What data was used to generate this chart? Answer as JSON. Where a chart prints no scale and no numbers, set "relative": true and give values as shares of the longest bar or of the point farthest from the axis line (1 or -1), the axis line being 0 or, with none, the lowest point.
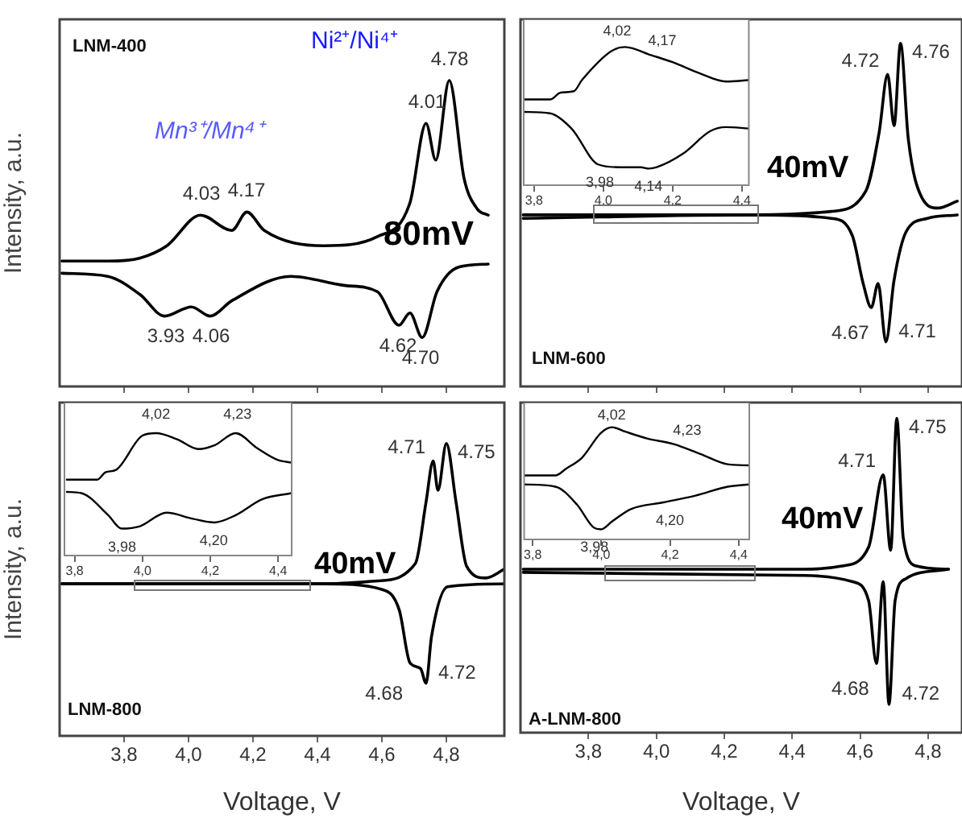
{
  "chart_data": [
    {
      "type": "line",
      "relative": true,
      "ylabel": "Intensity, a.u.",
      "tick_labels": false,
      "xlim": [
        3.6,
        4.98
      ],
      "xticks": [
        {
          "value": 3.8,
          "label": null
        },
        {
          "value": 4.0,
          "label": null
        },
        {
          "value": 4.2,
          "label": null
        },
        {
          "value": 4.4,
          "label": null
        },
        {
          "value": 4.6,
          "label": null
        },
        {
          "value": 4.8,
          "label": null
        }
      ],
      "series": [
        {
          "color": "#000000",
          "x": [
            3.607,
            3.749,
            3.85,
            3.933,
            4.037,
            4.134,
            4.181,
            4.235,
            4.419,
            4.586,
            4.687,
            4.737,
            4.767,
            4.809,
            4.855,
            4.896,
            4.93
          ],
          "values": [
            0.41,
            0.41,
            0.42,
            0.46,
            0.56,
            0.51,
            0.57,
            0.51,
            0.46,
            0.49,
            0.6,
            0.86,
            0.74,
            1,
            0.68,
            0.58,
            0.56
          ]
        },
        {
          "color": "#000000",
          "x": [
            3.607,
            3.749,
            3.85,
            3.925,
            4.009,
            4.067,
            4.134,
            4.318,
            4.486,
            4.586,
            4.653,
            4.687,
            4.725,
            4.771,
            4.838,
            4.93
          ],
          "values": [
            0.37,
            0.36,
            0.3,
            0.23,
            0.26,
            0.23,
            0.28,
            0.36,
            0.33,
            0.31,
            0.2,
            0.24,
            0.16,
            0.31,
            0.39,
            0.4
          ]
        }
      ],
      "annotations": [
        "LNM-400",
        "Ni²⁺/Ni⁴⁺",
        "Mn³⁺/Mn⁴⁺",
        "80mV",
        {
          "text": "4.03",
          "x": 4.04,
          "y": 0.56
        },
        {
          "text": "4.17",
          "x": 4.18,
          "y": 0.57
        },
        {
          "text": "4.01",
          "x": 4.74,
          "y": 0.86
        },
        {
          "text": "4.78",
          "x": 4.81,
          "y": 1
        },
        {
          "text": "3.93",
          "x": 3.93,
          "y": 0.23
        },
        {
          "text": "4.06",
          "x": 4.07,
          "y": 0.23
        },
        {
          "text": "4.62",
          "x": 4.65,
          "y": 0.2
        },
        {
          "text": "4.70",
          "x": 4.72,
          "y": 0.16
        }
      ]
    },
    {
      "type": "line",
      "relative": true,
      "tick_labels": false,
      "xlim": [
        3.6,
        4.9
      ],
      "xticks": [
        {
          "value": 3.8,
          "label": null
        },
        {
          "value": 4.0,
          "label": null
        },
        {
          "value": 4.2,
          "label": null
        },
        {
          "value": 4.4,
          "label": null
        },
        {
          "value": 4.6,
          "label": null
        },
        {
          "value": 4.8,
          "label": null
        }
      ],
      "series": [
        {
          "color": "#000000",
          "x": [
            3.608,
            4.296,
            4.515,
            4.617,
            4.656,
            4.681,
            4.7,
            4.719,
            4.742,
            4.782,
            4.829,
            4.886
          ],
          "values": [
            0.5,
            0.5,
            0.51,
            0.57,
            0.74,
            0.91,
            0.76,
            1,
            0.72,
            0.55,
            0.52,
            0.54
          ]
        },
        {
          "color": "#000000",
          "x": [
            3.608,
            4.296,
            4.515,
            4.577,
            4.609,
            4.633,
            4.653,
            4.676,
            4.7,
            4.735,
            4.798,
            4.886
          ],
          "values": [
            0.49,
            0.5,
            0.49,
            0.44,
            0.3,
            0.23,
            0.3,
            0.13,
            0.31,
            0.45,
            0.49,
            0.5
          ]
        }
      ],
      "annotations": [
        "40mV",
        "LNM-600",
        {
          "text": "4.72",
          "x": 4.68,
          "y": 0.91
        },
        {
          "text": "4.76",
          "x": 4.72,
          "y": 1
        },
        {
          "text": "4.67",
          "x": 4.65,
          "y": 0.23
        },
        {
          "text": "4.71",
          "x": 4.68,
          "y": 0.13
        }
      ]
    },
    {
      "type": "line",
      "relative": true,
      "tick_labels": "x",
      "xlim": [
        3.77,
        4.42
      ],
      "xticks": [
        {
          "value": 3.8,
          "label": "3,8"
        },
        {
          "value": 4.0,
          "label": "4,0"
        },
        {
          "value": 4.2,
          "label": "4,2"
        },
        {
          "value": 4.4,
          "label": "4,4"
        }
      ],
      "series": [
        {
          "color": "#000000",
          "x": [
            3.772,
            3.846,
            3.877,
            3.915,
            3.938,
            4.023,
            4.062,
            4.139,
            4.2,
            4.277,
            4.354,
            4.42
          ],
          "values": [
            0.62,
            0.62,
            0.67,
            0.68,
            0.76,
            0.97,
            1,
            0.94,
            0.89,
            0.81,
            0.75,
            0.76
          ]
        },
        {
          "color": "#000000",
          "x": [
            3.772,
            3.846,
            3.908,
            3.985,
            4.046,
            4.108,
            4.131,
            4.154,
            4.231,
            4.308,
            4.354,
            4.42
          ],
          "values": [
            0.53,
            0.52,
            0.41,
            0.15,
            0.13,
            0.13,
            0.12,
            0.13,
            0.23,
            0.39,
            0.42,
            0.41
          ]
        }
      ],
      "annotations": [
        {
          "text": "4,02",
          "x": 4.04,
          "y": 0.98
        },
        {
          "text": "4,17",
          "x": 4.17,
          "y": 0.91
        },
        {
          "text": "3,98",
          "x": 3.99,
          "y": 0.15
        },
        {
          "text": "4,14",
          "x": 4.13,
          "y": 0.12
        }
      ]
    },
    {
      "type": "line",
      "relative": true,
      "xlabel": "Voltage, V",
      "ylabel": "Intensity, a.u.",
      "tick_labels": "x",
      "xlim": [
        3.6,
        4.98
      ],
      "xticks": [
        {
          "value": 3.8,
          "label": "3,8"
        },
        {
          "value": 4.0,
          "label": "4,0"
        },
        {
          "value": 4.2,
          "label": "4,2"
        },
        {
          "value": 4.4,
          "label": "4,4"
        },
        {
          "value": 4.6,
          "label": "4,6"
        },
        {
          "value": 4.8,
          "label": "4,8"
        }
      ],
      "series": [
        {
          "color": "#000000",
          "x": [
            3.607,
            4.419,
            4.586,
            4.704,
            4.737,
            4.759,
            4.774,
            4.8,
            4.83,
            4.863,
            4.922,
            4.98
          ],
          "values": [
            0.52,
            0.52,
            0.53,
            0.59,
            0.8,
            0.94,
            0.84,
            1,
            0.8,
            0.58,
            0.54,
            0.57
          ]
        },
        {
          "color": "#000000",
          "x": [
            3.607,
            4.419,
            4.603,
            4.654,
            4.687,
            4.72,
            4.737,
            4.754,
            4.804,
            4.98
          ],
          "values": [
            0.52,
            0.52,
            0.5,
            0.43,
            0.25,
            0.23,
            0.18,
            0.34,
            0.51,
            0.52
          ]
        }
      ],
      "annotations": [
        "40mV",
        "LNM-800",
        {
          "text": "4.71",
          "x": 4.76,
          "y": 0.94
        },
        {
          "text": "4.75",
          "x": 4.8,
          "y": 1
        },
        {
          "text": "4.68",
          "x": 4.69,
          "y": 0.23
        },
        {
          "text": "4.72",
          "x": 4.74,
          "y": 0.18
        }
      ]
    },
    {
      "type": "line",
      "relative": true,
      "tick_labels": "x",
      "xlim": [
        3.77,
        4.44
      ],
      "xticks": [
        {
          "value": 3.8,
          "label": "3,8"
        },
        {
          "value": 4.0,
          "label": "4,0"
        },
        {
          "value": 4.2,
          "label": "4,2"
        },
        {
          "value": 4.4,
          "label": "4,4"
        }
      ],
      "series": [
        {
          "color": "#000000",
          "x": [
            3.777,
            3.867,
            3.891,
            3.922,
            4.0,
            4.04,
            4.102,
            4.165,
            4.212,
            4.275,
            4.337,
            4.4,
            4.439
          ],
          "values": [
            0.62,
            0.62,
            0.68,
            0.7,
            0.98,
            1,
            0.95,
            0.87,
            0.9,
            1,
            0.88,
            0.78,
            0.76
          ]
        },
        {
          "color": "#000000",
          "x": [
            3.777,
            3.82,
            3.899,
            3.938,
            3.993,
            4.071,
            4.149,
            4.212,
            4.275,
            4.353,
            4.439
          ],
          "values": [
            0.52,
            0.51,
            0.33,
            0.22,
            0.24,
            0.35,
            0.3,
            0.27,
            0.33,
            0.46,
            0.51
          ]
        }
      ],
      "annotations": [
        {
          "text": "4,02",
          "x": 4.04,
          "y": 1
        },
        {
          "text": "4,23",
          "x": 4.28,
          "y": 1
        },
        {
          "text": "3,98",
          "x": 3.94,
          "y": 0.22
        },
        {
          "text": "4,20",
          "x": 4.21,
          "y": 0.27
        }
      ]
    },
    {
      "type": "line",
      "relative": true,
      "xlabel": "Voltage, V",
      "tick_labels": "x",
      "xlim": [
        3.6,
        4.9
      ],
      "xticks": [
        {
          "value": 3.8,
          "label": "3,8"
        },
        {
          "value": 4.0,
          "label": "4,0"
        },
        {
          "value": 4.2,
          "label": "4,2"
        },
        {
          "value": 4.4,
          "label": "4,4"
        },
        {
          "value": 4.6,
          "label": "4,6"
        },
        {
          "value": 4.8,
          "label": "4,8"
        }
      ],
      "series": [
        {
          "color": "#000000",
          "x": [
            3.608,
            4.437,
            4.547,
            4.625,
            4.668,
            4.69,
            4.708,
            4.727,
            4.766,
            4.86
          ],
          "values": [
            0.52,
            0.52,
            0.53,
            0.59,
            0.82,
            0.58,
            1,
            0.62,
            0.53,
            0.52
          ]
        },
        {
          "color": "#000000",
          "x": [
            3.608,
            4.437,
            4.578,
            4.625,
            4.648,
            4.668,
            4.685,
            4.703,
            4.735,
            4.86
          ],
          "values": [
            0.51,
            0.5,
            0.48,
            0.42,
            0.22,
            0.48,
            0.09,
            0.42,
            0.49,
            0.52
          ]
        }
      ],
      "annotations": [
        "40mV",
        "A-LNM-800",
        {
          "text": "4.71",
          "x": 4.67,
          "y": 0.82
        },
        {
          "text": "4.75",
          "x": 4.71,
          "y": 1
        },
        {
          "text": "4.68",
          "x": 4.65,
          "y": 0.22
        },
        {
          "text": "4.72",
          "x": 4.69,
          "y": 0.09
        }
      ]
    },
    {
      "type": "line",
      "relative": true,
      "tick_labels": "x",
      "xlim": [
        3.775,
        4.431
      ],
      "xticks": [
        {
          "value": 3.8,
          "label": "3,8"
        },
        {
          "value": 4.0,
          "label": "4,0"
        },
        {
          "value": 4.2,
          "label": "4,2"
        },
        {
          "value": 4.4,
          "label": "4,4"
        }
      ],
      "series": [
        {
          "color": "#000000",
          "x": [
            3.775,
            3.866,
            3.897,
            3.944,
            3.999,
            4.031,
            4.07,
            4.133,
            4.211,
            4.29,
            4.368,
            4.431
          ],
          "values": [
            0.57,
            0.57,
            0.63,
            0.73,
            0.95,
            1,
            0.96,
            0.9,
            0.85,
            0.76,
            0.67,
            0.66
          ]
        },
        {
          "color": "#000000",
          "x": [
            3.775,
            3.866,
            3.929,
            3.976,
            3.999,
            4.031,
            4.086,
            4.18,
            4.274,
            4.368,
            4.431
          ],
          "values": [
            0.49,
            0.47,
            0.31,
            0.11,
            0.09,
            0.16,
            0.27,
            0.33,
            0.39,
            0.47,
            0.49
          ]
        }
      ],
      "annotations": [
        {
          "text": "4,02",
          "x": 4.03,
          "y": 0.94
        },
        {
          "text": "4,23",
          "x": 4.25,
          "y": 0.8
        },
        {
          "text": "3,98",
          "x": 3.98,
          "y": 0.09
        },
        {
          "text": "4,20",
          "x": 4.2,
          "y": 0.33
        }
      ]
    }
  ]
}
